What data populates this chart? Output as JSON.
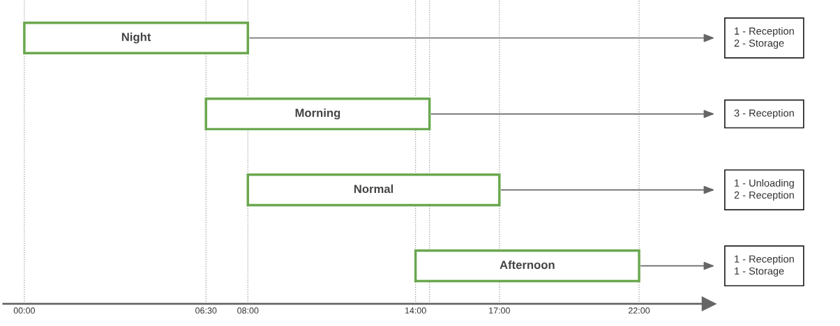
{
  "chart_data": {
    "type": "bar",
    "orientation": "horizontal",
    "categories": [
      "Night",
      "Morning",
      "Normal",
      "Afternoon"
    ],
    "base": [
      0,
      6.5,
      8,
      14
    ],
    "values": [
      8,
      8,
      9,
      8
    ],
    "color": "#6aa84f",
    "xlim": [
      -0.75,
      24.5
    ],
    "xticks": [
      {
        "value": 0,
        "label": "00:00"
      },
      {
        "value": 6.5,
        "label": "06:30"
      },
      {
        "value": 8,
        "label": "08:00"
      },
      {
        "value": 14,
        "label": "14:00"
      },
      {
        "value": 17,
        "label": "17:00"
      },
      {
        "value": 22,
        "label": "22:00"
      }
    ],
    "ref_lines": [
      {
        "axis": "x",
        "value": 0,
        "line_style": "dotted",
        "color": "#999999"
      },
      {
        "axis": "x",
        "value": 6.5,
        "line_style": "dotted",
        "color": "#999999"
      },
      {
        "axis": "x",
        "value": 8,
        "line_style": "dotted",
        "color": "#999999"
      },
      {
        "axis": "x",
        "value": 14,
        "line_style": "dotted",
        "color": "#999999"
      },
      {
        "axis": "x",
        "value": 14.5,
        "line_style": "dotted",
        "color": "#999999"
      },
      {
        "axis": "x",
        "value": 17,
        "line_style": "dotted",
        "color": "#999999"
      },
      {
        "axis": "x",
        "value": 22,
        "line_style": "dotted",
        "color": "#999999"
      }
    ],
    "annotations": [
      "1 - Reception\n2 - Storage",
      "3 - Reception",
      "1 - Unloading\n2 - Reception",
      "1 - Reception\n1 - Storage"
    ],
    "tick_labels": "x",
    "grid": false,
    "legend": false
  }
}
